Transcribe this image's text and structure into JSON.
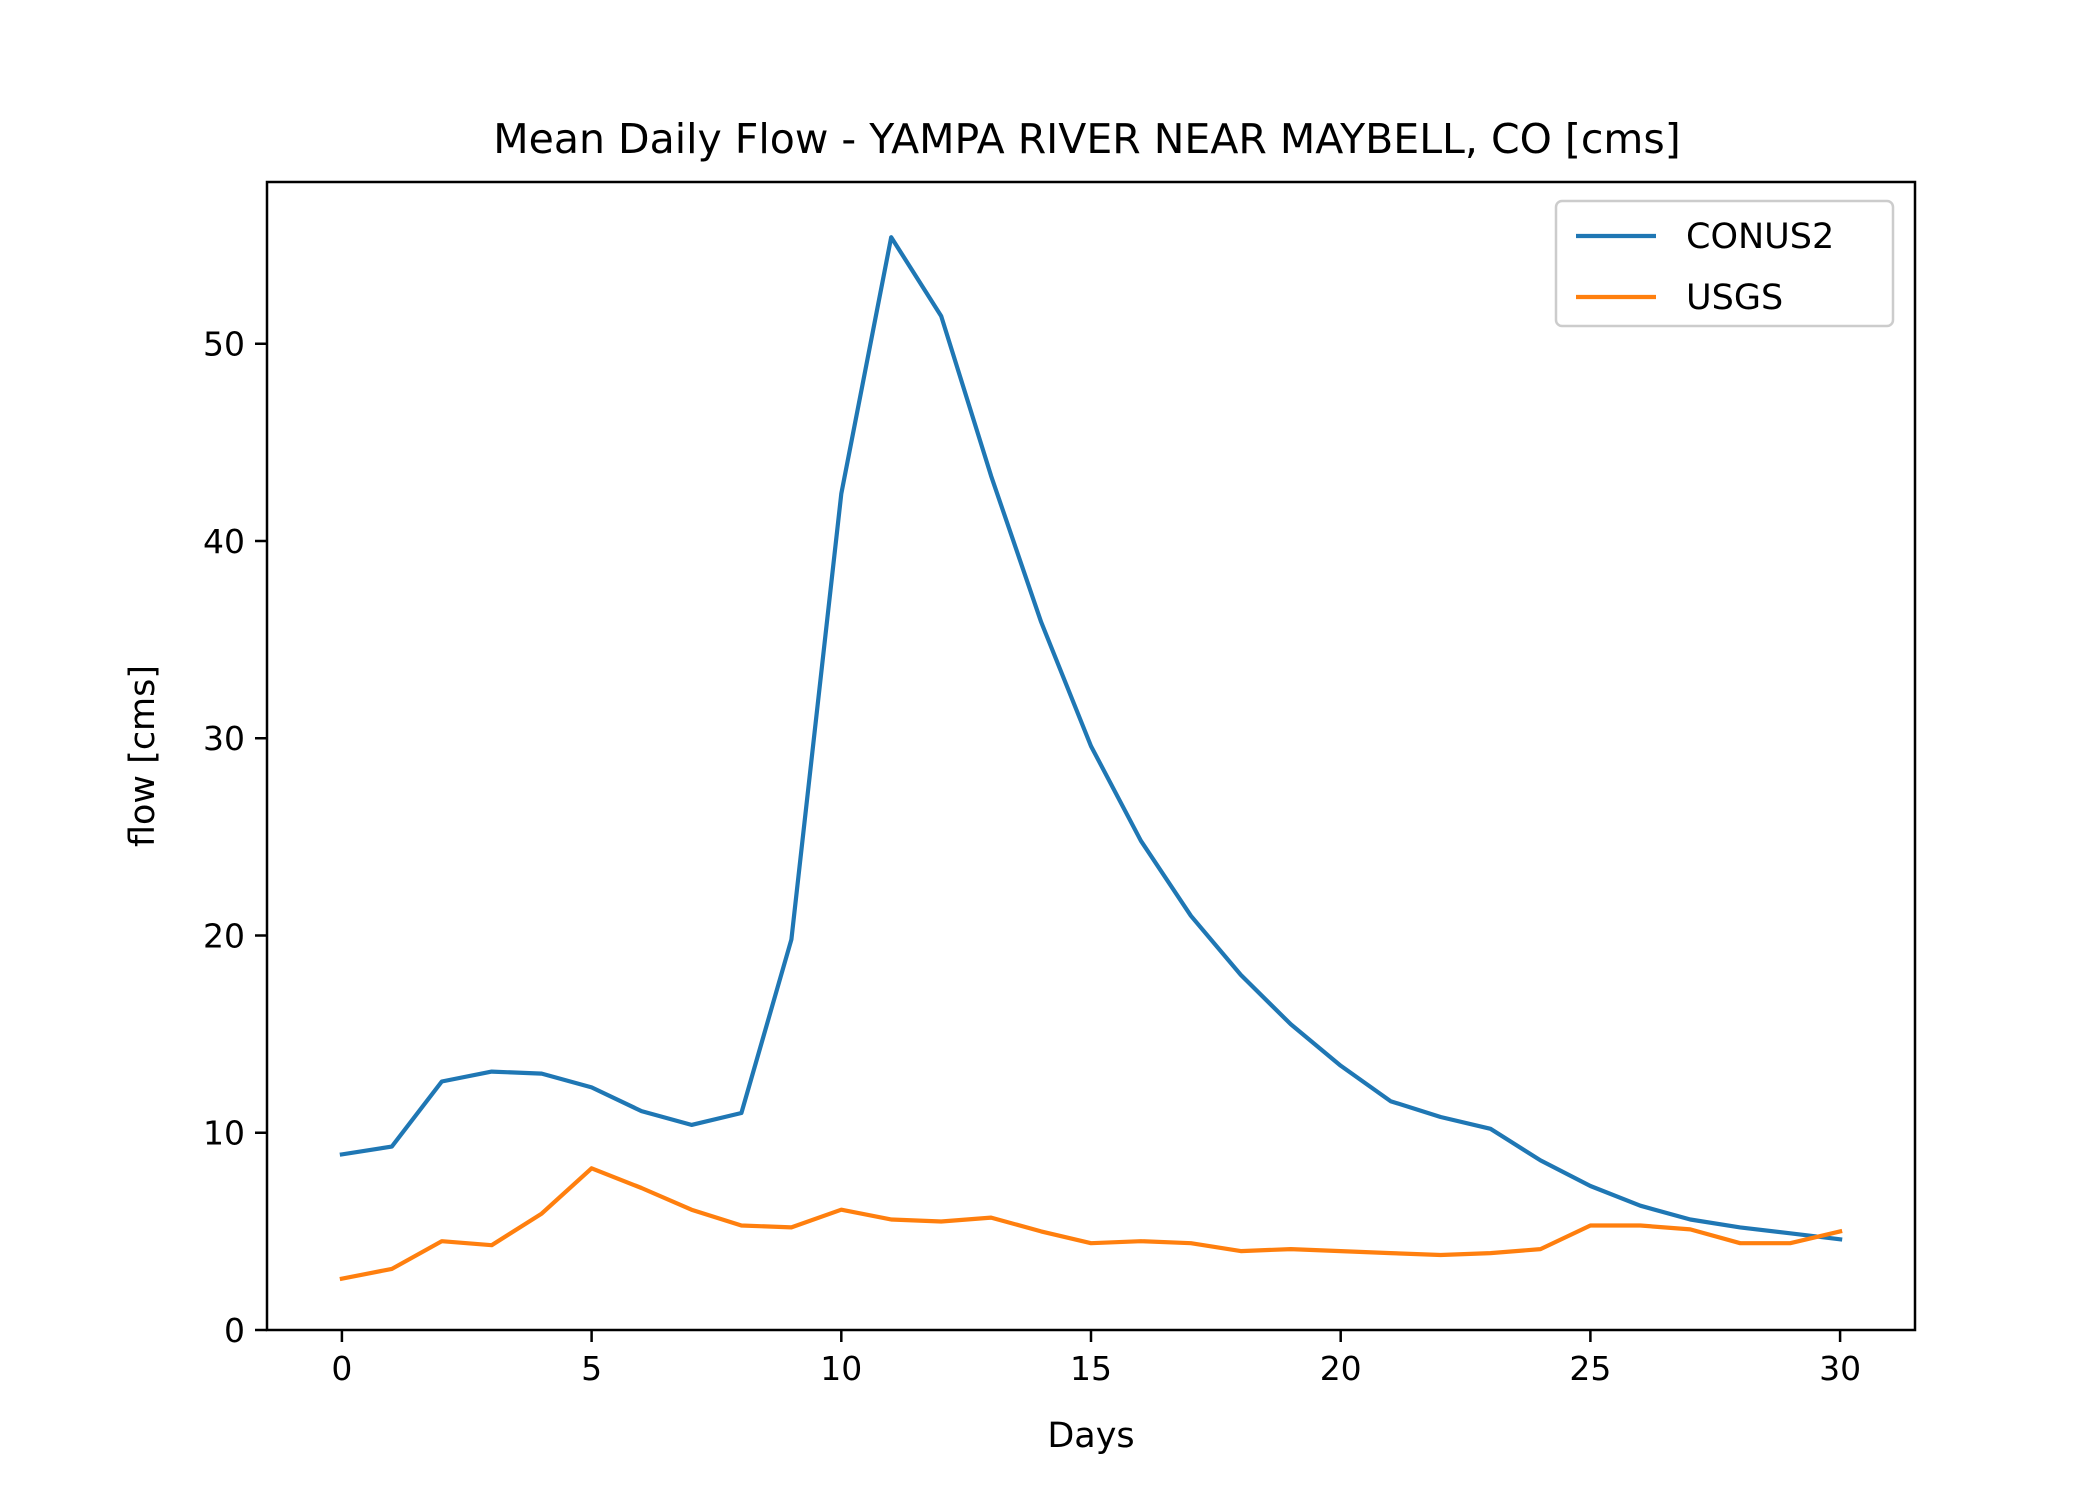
{
  "chart_data": {
    "type": "line",
    "title": "Mean Daily Flow - YAMPA RIVER NEAR MAYBELL, CO [cms]",
    "xlabel": "Days",
    "ylabel": "flow [cms]",
    "xlim": [
      -1.5,
      31.5
    ],
    "ylim": [
      0,
      58.2
    ],
    "xticks": [
      0,
      5,
      10,
      15,
      20,
      25,
      30
    ],
    "yticks": [
      0,
      10,
      20,
      30,
      40,
      50
    ],
    "grid": false,
    "legend_position": "top-right",
    "x": [
      0,
      1,
      2,
      3,
      4,
      5,
      6,
      7,
      8,
      9,
      10,
      11,
      12,
      13,
      14,
      15,
      16,
      17,
      18,
      19,
      20,
      21,
      22,
      23,
      24,
      25,
      26,
      27,
      28,
      29,
      30
    ],
    "series": [
      {
        "name": "CONUS2",
        "color": "#1f77b4",
        "values": [
          8.9,
          9.3,
          12.6,
          13.1,
          13.0,
          12.3,
          11.1,
          10.4,
          11.0,
          19.8,
          42.4,
          55.4,
          51.4,
          43.3,
          35.9,
          29.6,
          24.8,
          21.0,
          18.0,
          15.5,
          13.4,
          11.6,
          10.8,
          10.2,
          8.6,
          7.3,
          6.3,
          5.6,
          5.2,
          4.9,
          4.6
        ]
      },
      {
        "name": "USGS",
        "color": "#ff7f0e",
        "values": [
          2.6,
          3.1,
          4.5,
          4.3,
          5.9,
          8.2,
          7.2,
          6.1,
          5.3,
          5.2,
          6.1,
          5.6,
          5.5,
          5.7,
          5.0,
          4.4,
          4.5,
          4.4,
          4.0,
          4.1,
          4.0,
          3.9,
          3.8,
          3.9,
          4.1,
          5.3,
          5.3,
          5.1,
          4.4,
          4.4,
          5.0
        ]
      }
    ]
  }
}
